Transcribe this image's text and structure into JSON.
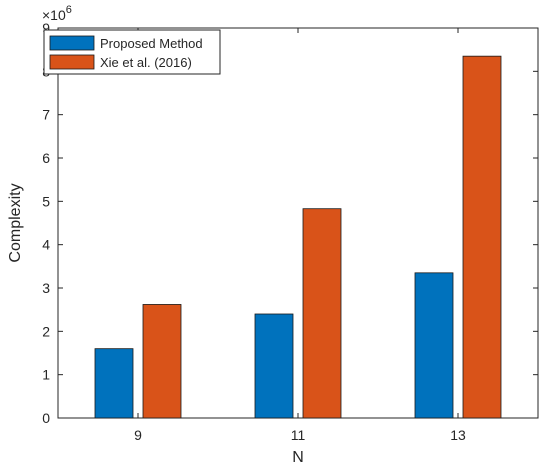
{
  "chart_data": {
    "type": "bar",
    "categories": [
      "9",
      "11",
      "13"
    ],
    "series": [
      {
        "name": "Proposed Method",
        "values": [
          1.6,
          2.4,
          3.35
        ]
      },
      {
        "name": "Xie et al. (2016)",
        "values": [
          2.62,
          4.83,
          8.35
        ]
      }
    ],
    "xlabel": "N",
    "ylabel": "Complexity",
    "ylim": [
      0,
      9
    ],
    "yticks": [
      0,
      1,
      2,
      3,
      4,
      5,
      6,
      7,
      8,
      9
    ],
    "exponent_base": "×10",
    "exponent_power": "6",
    "legend_position": "top-left",
    "grid": false,
    "colors": [
      "#0072BD",
      "#D95319"
    ]
  }
}
